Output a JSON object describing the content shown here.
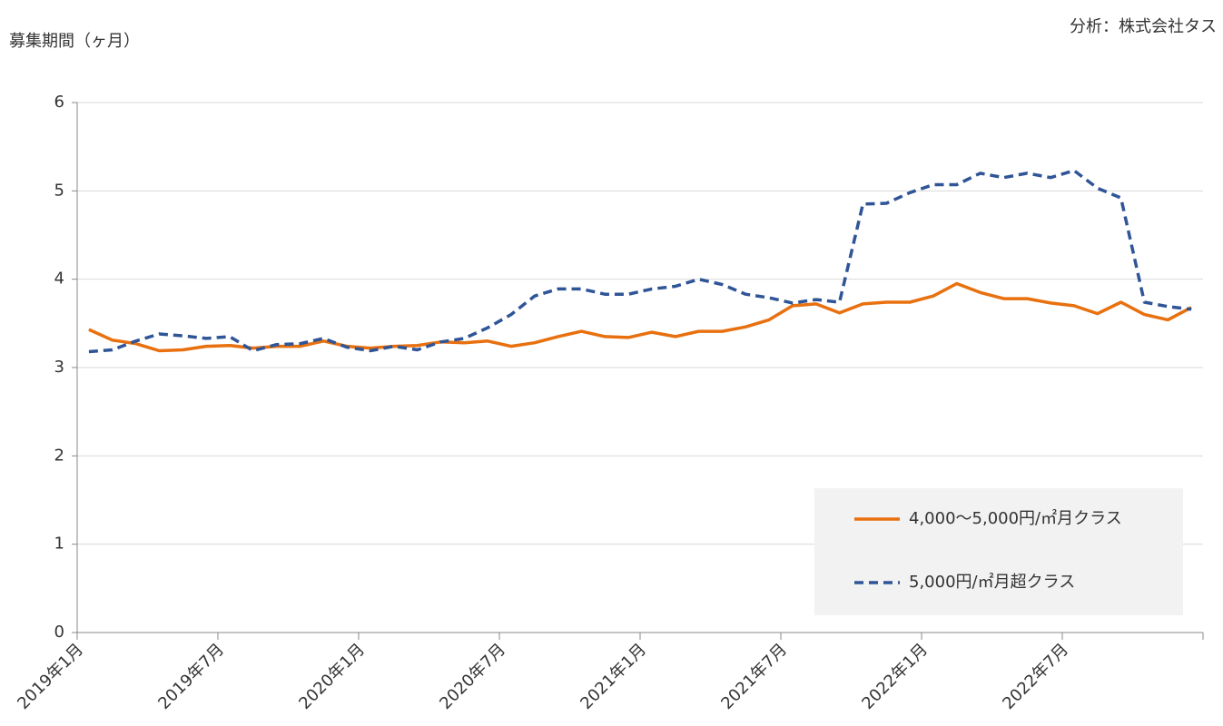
{
  "chart_data": {
    "type": "line",
    "y_label": "募集期間（ヶ月）",
    "source": "分析：株式会社タス",
    "categories": [
      "2019年1月",
      null,
      null,
      null,
      null,
      null,
      "2019年7月",
      null,
      null,
      null,
      null,
      null,
      "2020年1月",
      null,
      null,
      null,
      null,
      null,
      "2020年7月",
      null,
      null,
      null,
      null,
      null,
      "2021年1月",
      null,
      null,
      null,
      null,
      null,
      "2021年7月",
      null,
      null,
      null,
      null,
      null,
      "2022年1月",
      null,
      null,
      null,
      null,
      null,
      "2022年7月",
      null,
      null,
      null,
      null,
      null
    ],
    "series": [
      {
        "name": "4,000～5,000円/㎡月クラス",
        "color": "#e8700f",
        "dash": false,
        "values": [
          3.43,
          3.31,
          3.27,
          3.19,
          3.2,
          3.24,
          3.25,
          3.22,
          3.24,
          3.24,
          3.3,
          3.24,
          3.22,
          3.24,
          3.25,
          3.29,
          3.28,
          3.3,
          3.24,
          3.28,
          3.35,
          3.41,
          3.35,
          3.34,
          3.4,
          3.35,
          3.41,
          3.41,
          3.46,
          3.54,
          3.7,
          3.72,
          3.62,
          3.72,
          3.74,
          3.74,
          3.81,
          3.95,
          3.85,
          3.78,
          3.78,
          3.73,
          3.7,
          3.61,
          3.74,
          3.6,
          3.54,
          3.68
        ]
      },
      {
        "name": "5,000円/㎡月超クラス",
        "color": "#2f5597",
        "dash": true,
        "values": [
          3.18,
          3.2,
          3.3,
          3.38,
          3.36,
          3.33,
          3.35,
          3.19,
          3.26,
          3.27,
          3.33,
          3.23,
          3.19,
          3.24,
          3.2,
          3.29,
          3.33,
          3.45,
          3.6,
          3.81,
          3.89,
          3.89,
          3.83,
          3.83,
          3.89,
          3.92,
          4.0,
          3.94,
          3.83,
          3.79,
          3.73,
          3.77,
          3.74,
          4.85,
          4.86,
          4.98,
          5.07,
          5.07,
          5.2,
          5.15,
          5.2,
          5.15,
          5.23,
          5.03,
          4.92,
          3.74,
          3.69,
          3.66
        ]
      }
    ],
    "ylim": [
      0,
      6
    ],
    "yticks": [
      0,
      1,
      2,
      3,
      4,
      5,
      6
    ],
    "grid": true,
    "legend": "lower right"
  }
}
